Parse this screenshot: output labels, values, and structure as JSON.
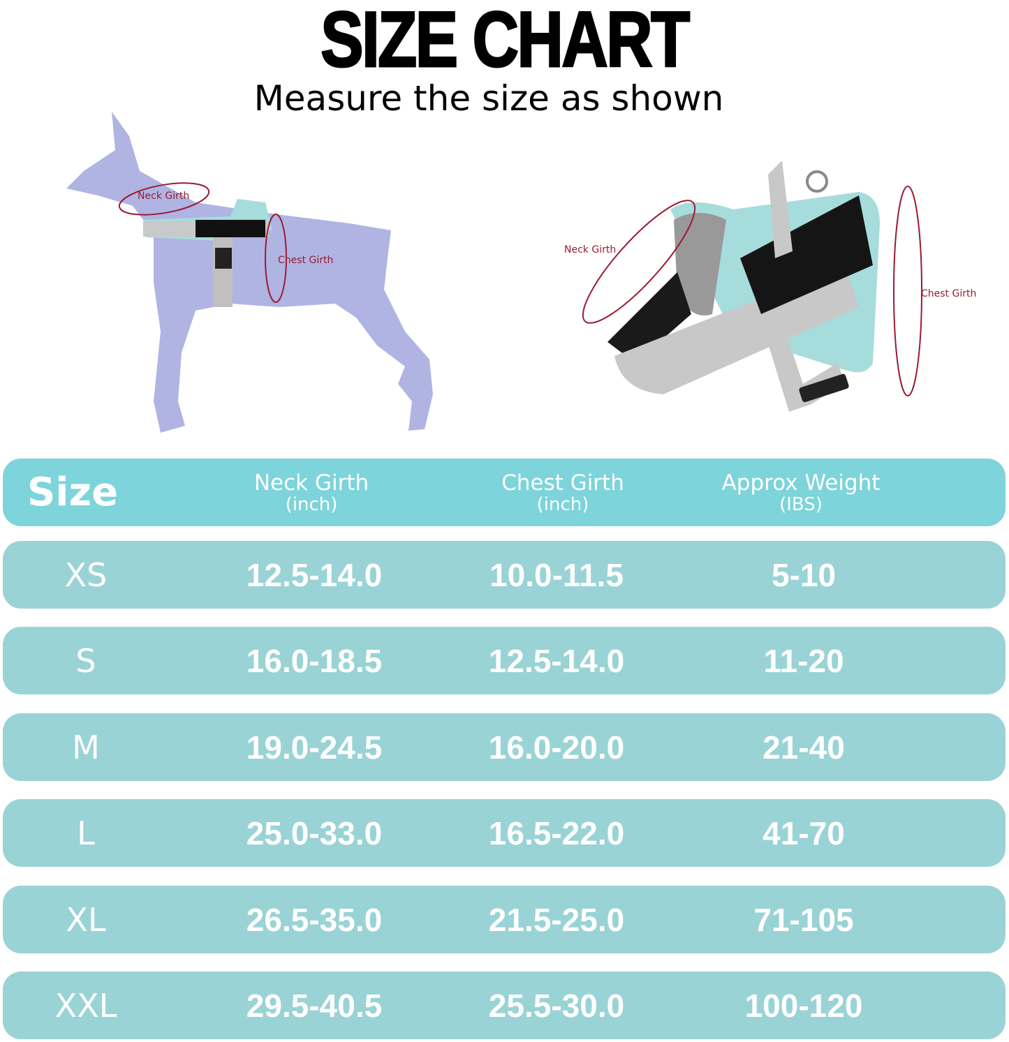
{
  "title": "SIZE CHART",
  "subtitle": "Measure the size as shown",
  "diagram_labels": {
    "dog_neck": "Neck Girth",
    "dog_chest": "Chest Girth",
    "harness_neck": "Neck Girth",
    "harness_chest": "Chest Girth"
  },
  "colors": {
    "header": "#7dd4da",
    "row": "#9ad3d6",
    "dog": "#afb4e2",
    "measure_line": "#9b1b35",
    "harness": "#a6dcdc"
  },
  "table": {
    "headers": [
      {
        "main": "Size",
        "sub": ""
      },
      {
        "main": "Neck Girth",
        "sub": "(inch)"
      },
      {
        "main": "Chest Girth",
        "sub": "(inch)"
      },
      {
        "main": "Approx Weight",
        "sub": "(IBS)"
      }
    ],
    "rows": [
      [
        "XS",
        "12.5-14.0",
        "10.0-11.5",
        "5-10"
      ],
      [
        "S",
        "16.0-18.5",
        "12.5-14.0",
        "11-20"
      ],
      [
        "M",
        "19.0-24.5",
        "16.0-20.0",
        "21-40"
      ],
      [
        "L",
        "25.0-33.0",
        "16.5-22.0",
        "41-70"
      ],
      [
        "XL",
        "26.5-35.0",
        "21.5-25.0",
        "71-105"
      ],
      [
        "XXL",
        "29.5-40.5",
        "25.5-30.0",
        "100-120"
      ]
    ]
  }
}
